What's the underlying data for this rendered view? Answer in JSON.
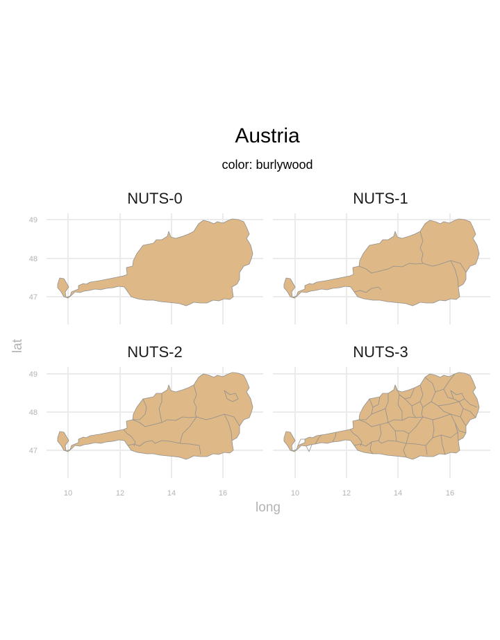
{
  "title": "Austria",
  "subtitle": "color: burlywood",
  "fill_color": "#DEB887",
  "outline_color": "#8f8f8f",
  "x_axis": {
    "label": "long",
    "ticks": [
      "10",
      "12",
      "14",
      "16"
    ]
  },
  "y_axis": {
    "label": "lat",
    "ticks": [
      "49",
      "48",
      "47"
    ]
  },
  "panels": [
    {
      "label": "NUTS-0"
    },
    {
      "label": "NUTS-1"
    },
    {
      "label": "NUTS-2"
    },
    {
      "label": "NUTS-3"
    }
  ]
}
